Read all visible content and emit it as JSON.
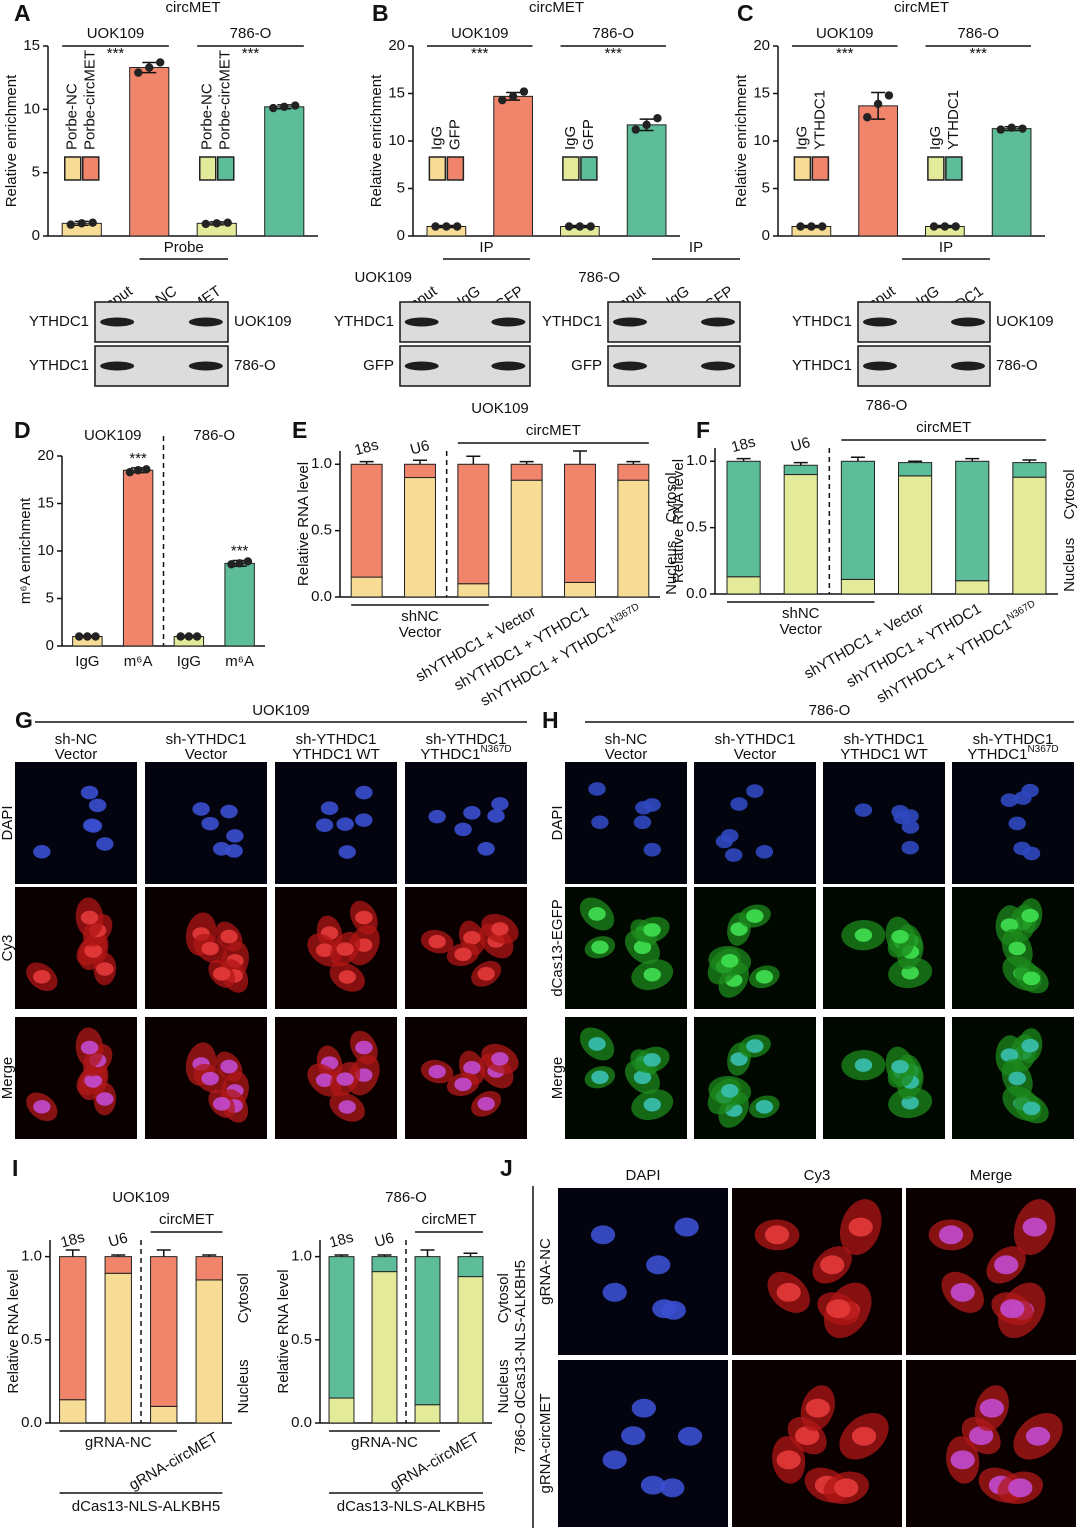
{
  "chart_data": [
    {
      "type": "bar",
      "panel": "A",
      "title": "circMET",
      "ylabel": "Relative enrichment",
      "ylim": [
        0,
        15
      ],
      "yticks": [
        0,
        5,
        10,
        15
      ],
      "groups": [
        {
          "name": "UOK109",
          "sig": "***"
        },
        {
          "name": "786-O",
          "sig": "***"
        }
      ],
      "sig_position": "group",
      "category_position": "legend",
      "categories": [
        "Porbe-NC",
        "Porbe-circMET",
        "Porbe-NC",
        "Porbe-circMET"
      ],
      "values": [
        1,
        13.3,
        1,
        10.2
      ],
      "errors": [
        0.15,
        0.4,
        0.12,
        0.15
      ],
      "points": [
        [
          0.9,
          1,
          1.05
        ],
        [
          12.9,
          13.3,
          13.7
        ],
        [
          0.95,
          1,
          1.05
        ],
        [
          10.1,
          10.2,
          10.3
        ]
      ],
      "colors": [
        "#f7dc96",
        "#f0856b",
        "#e3ea9a",
        "#5cbd98"
      ]
    },
    {
      "type": "bar",
      "panel": "B",
      "title": "circMET",
      "ylabel": "Relative enrichment",
      "ylim": [
        0,
        20
      ],
      "yticks": [
        0,
        5,
        10,
        15,
        20
      ],
      "groups": [
        {
          "name": "UOK109",
          "sig": "***"
        },
        {
          "name": "786-O",
          "sig": "***"
        }
      ],
      "sig_position": "group",
      "category_position": "legend",
      "categories": [
        "IgG",
        "GFP",
        "IgG",
        "GFP"
      ],
      "values": [
        1,
        14.7,
        1,
        11.7
      ],
      "errors": [
        0.1,
        0.4,
        0.1,
        0.6
      ],
      "points": [
        [
          1,
          1,
          1
        ],
        [
          14.3,
          14.7,
          15.2
        ],
        [
          1,
          1,
          1
        ],
        [
          11.2,
          11.7,
          12.4
        ]
      ],
      "colors": [
        "#f7dc96",
        "#f0856b",
        "#e3ea9a",
        "#5cbd98"
      ]
    },
    {
      "type": "bar",
      "panel": "C",
      "title": "circMET",
      "ylabel": "Relative enrichment",
      "ylim": [
        0,
        20
      ],
      "yticks": [
        0,
        5,
        10,
        15,
        20
      ],
      "groups": [
        {
          "name": "UOK109",
          "sig": "***"
        },
        {
          "name": "786-O",
          "sig": "***"
        }
      ],
      "sig_position": "group",
      "category_position": "legend",
      "categories": [
        "IgG",
        "YTHDC1",
        "IgG",
        "YTHDC1"
      ],
      "values": [
        1,
        13.7,
        1,
        11.3
      ],
      "errors": [
        0.1,
        1.4,
        0.1,
        0.2
      ],
      "points": [
        [
          1,
          1,
          1
        ],
        [
          12.5,
          13.9,
          14.8
        ],
        [
          1,
          1,
          1
        ],
        [
          11.2,
          11.4,
          11.3
        ]
      ],
      "colors": [
        "#f7dc96",
        "#f0856b",
        "#e3ea9a",
        "#5cbd98"
      ]
    },
    {
      "type": "bar",
      "panel": "D",
      "ylabel": "m⁶A enrichment",
      "ylim": [
        0,
        20
      ],
      "yticks": [
        0,
        5,
        10,
        15,
        20
      ],
      "groups": [
        {
          "name": "UOK109",
          "sig": "***"
        },
        {
          "name": "786-O",
          "sig": "***"
        }
      ],
      "sig_position": "bar",
      "category_position": "axis",
      "separator": true,
      "categories": [
        "IgG",
        "m⁶A",
        "IgG",
        "m⁶A"
      ],
      "values": [
        1,
        18.5,
        1,
        8.7
      ],
      "errors": [
        0.1,
        0.25,
        0.1,
        0.3
      ],
      "points": [
        [
          1,
          1,
          1
        ],
        [
          18.3,
          18.5,
          18.6
        ],
        [
          1,
          1,
          1
        ],
        [
          8.6,
          8.7,
          8.9
        ]
      ],
      "colors": [
        "#f7dc96",
        "#f0856b",
        "#e3ea9a",
        "#5cbd98"
      ]
    },
    {
      "type": "stacked_bar",
      "panel": "E",
      "title": "UOK109",
      "ylabel": "Relative RNA level",
      "ylim": [
        0,
        1.1
      ],
      "yticks": [
        {
          "value": 0,
          "label": "0.0"
        },
        0.5,
        {
          "value": 1,
          "label": "1.0"
        }
      ],
      "top_labels": [
        "18s",
        "U6"
      ],
      "group_label": "circMET",
      "shared_label": [
        "shNC",
        "Vector"
      ],
      "rotated_labels": [
        "shYTHDC1 + Vector",
        "shYTHDC1 + YTHDC1",
        {
          "text": "shYTHDC1 + YTHDC1",
          "sup": "N367D"
        }
      ],
      "series": [
        {
          "name": "Nucleus",
          "color": "#f7dc96",
          "values": [
            0.15,
            0.9,
            0.1,
            0.88,
            0.11,
            0.88
          ],
          "errors": [
            0.01,
            0.02,
            0.01,
            0.02,
            0.01,
            0.02
          ]
        },
        {
          "name": "Cytosol",
          "color": "#f0856b",
          "values": [
            0.85,
            0.1,
            0.9,
            0.12,
            0.89,
            0.12
          ],
          "errors": [
            0.02,
            0.03,
            0.06,
            0.02,
            0.1,
            0.02
          ]
        }
      ]
    },
    {
      "type": "stacked_bar",
      "panel": "F",
      "title": "786-O",
      "ylabel": "Relative RNA level",
      "ylim": [
        0,
        1.1
      ],
      "yticks": [
        {
          "value": 0,
          "label": "0.0"
        },
        0.5,
        {
          "value": 1,
          "label": "1.0"
        }
      ],
      "top_labels": [
        "18s",
        "U6"
      ],
      "group_label": "circMET",
      "shared_label": [
        "shNC",
        "Vector"
      ],
      "rotated_labels": [
        "shYTHDC1 + Vector",
        "shYTHDC1 + YTHDC1",
        {
          "text": "shYTHDC1 + YTHDC1",
          "sup": "N367D"
        }
      ],
      "series": [
        {
          "name": "Nucleus",
          "color": "#e3ea9a",
          "values": [
            0.13,
            0.9,
            0.11,
            0.89,
            0.1,
            0.88
          ],
          "errors": [
            0.01,
            0.02,
            0.01,
            0.01,
            0.01,
            0.02
          ]
        },
        {
          "name": "Cytosol",
          "color": "#5cbd98",
          "values": [
            0.87,
            0.07,
            0.89,
            0.1,
            0.9,
            0.11
          ],
          "errors": [
            0.02,
            0.02,
            0.03,
            0.01,
            0.02,
            0.02
          ]
        }
      ]
    },
    {
      "type": "stacked_bar",
      "panel": "I",
      "title": "UOK109",
      "ylabel": "Relative RNA level",
      "ylim": [
        0,
        1.1
      ],
      "yticks": [
        {
          "value": 0,
          "label": "0.0"
        },
        0.5,
        {
          "value": 1,
          "label": "1.0"
        }
      ],
      "top_labels": [
        "18s",
        "U6"
      ],
      "group_label": "circMET",
      "shared_label": [
        "gRNA-NC"
      ],
      "rotated_labels": [
        "gRNA-circMET"
      ],
      "footer": "dCas13-NLS-ALKBH5",
      "series": [
        {
          "name": "Nucleus",
          "color": "#f7dc96",
          "values": [
            0.14,
            0.9,
            0.1,
            0.86
          ],
          "errors": [
            0.01,
            0.02,
            0.01,
            0.02
          ]
        },
        {
          "name": "Cytosol",
          "color": "#f0856b",
          "values": [
            0.86,
            0.1,
            0.9,
            0.14
          ],
          "errors": [
            0.04,
            0.01,
            0.04,
            0.01
          ]
        }
      ]
    },
    {
      "type": "stacked_bar",
      "title": "786-O",
      "ylabel": "Relative RNA level",
      "ylim": [
        0,
        1.1
      ],
      "yticks": [
        {
          "value": 0,
          "label": "0.0"
        },
        0.5,
        {
          "value": 1,
          "label": "1.0"
        }
      ],
      "top_labels": [
        "18s",
        "U6"
      ],
      "group_label": "circMET",
      "shared_label": [
        "gRNA-NC"
      ],
      "rotated_labels": [
        "gRNA-circMET"
      ],
      "footer": "dCas13-NLS-ALKBH5",
      "series": [
        {
          "name": "Nucleus",
          "color": "#e3ea9a",
          "values": [
            0.15,
            0.91,
            0.11,
            0.88
          ],
          "errors": [
            0.01,
            0.02,
            0.01,
            0.02
          ]
        },
        {
          "name": "Cytosol",
          "color": "#5cbd98",
          "values": [
            0.85,
            0.09,
            0.89,
            0.12
          ],
          "errors": [
            0.01,
            0.01,
            0.04,
            0.02
          ]
        }
      ]
    }
  ],
  "blots": [
    {
      "header": "Probe",
      "lanes": [
        "Input",
        "NC",
        "circMET"
      ],
      "rows": [
        "YTHDC1",
        "YTHDC1"
      ],
      "right": [
        "UOK109",
        "786-O"
      ]
    },
    {
      "side": "UOK109",
      "header": "IP",
      "lanes": [
        "Input",
        "IgG",
        "GFP"
      ],
      "rows": [
        "YTHDC1",
        "GFP"
      ]
    },
    {
      "side": "786-O",
      "header": "IP",
      "lanes": [
        "Input",
        "IgG",
        "GFP"
      ],
      "rows": [
        "YTHDC1",
        "GFP"
      ]
    },
    {
      "header": "IP",
      "lanes": [
        "Input",
        "IgG",
        "YTHDC1"
      ],
      "rows": [
        "YTHDC1",
        "YTHDC1"
      ],
      "right": [
        "UOK109",
        "786-O"
      ]
    }
  ],
  "images": [
    {
      "panel": "G",
      "title": "UOK109",
      "columns": [
        [
          "sh-NC",
          "Vector"
        ],
        [
          "sh-YTHDC1",
          "Vector"
        ],
        [
          "sh-YTHDC1",
          "YTHDC1 WT"
        ],
        [
          "sh-YTHDC1",
          {
            "text": "YTHDC1",
            "sup": "N367D"
          }
        ]
      ],
      "rows": [
        {
          "label": "DAPI",
          "color": "#3050c0"
        },
        {
          "label": "Cy3",
          "color": "#e02020"
        },
        {
          "label": "Merge",
          "color": "#c020c0"
        }
      ]
    },
    {
      "panel": "H",
      "title": "786-O",
      "columns": [
        [
          "sh-NC",
          "Vector"
        ],
        [
          "sh-YTHDC1",
          "Vector"
        ],
        [
          "sh-YTHDC1",
          "YTHDC1 WT"
        ],
        [
          "sh-YTHDC1",
          {
            "text": "YTHDC1",
            "sup": "N367D"
          }
        ]
      ],
      "rows": [
        {
          "label": "DAPI",
          "color": "#3050c0"
        },
        {
          "label": "dCas13-EGFP",
          "color": "#20a020"
        },
        {
          "label": "Merge",
          "color": "#20b8c8"
        }
      ]
    },
    {
      "panel": "J",
      "columns": [
        {
          "label": "DAPI",
          "color": "#3050c0"
        },
        {
          "label": "Cy3",
          "color": "#e02020"
        },
        {
          "label": "Merge",
          "color": "#c020c0"
        }
      ],
      "rows": [
        "gRNA-NC",
        "gRNA-circMET"
      ],
      "side": "786-O dCas13-NLS-ALKBH5"
    }
  ]
}
